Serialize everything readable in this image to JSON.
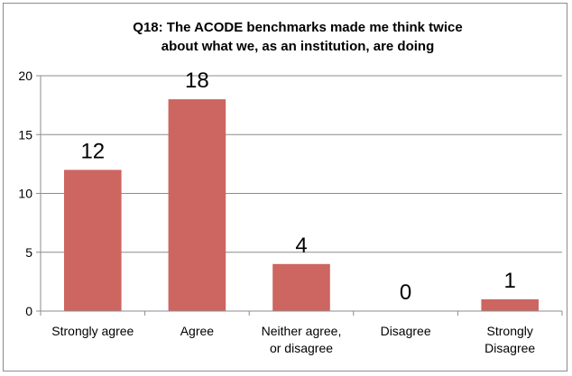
{
  "chart_data": {
    "type": "bar",
    "title_lines": [
      "Q18: The ACODE benchmarks made me think twice",
      "about what we, as an institution, are doing"
    ],
    "categories": [
      [
        "Strongly agree"
      ],
      [
        "Agree"
      ],
      [
        "Neither agree,",
        "or disagree"
      ],
      [
        "Disagree"
      ],
      [
        "Strongly",
        "Disagree"
      ]
    ],
    "values": [
      12,
      18,
      4,
      0,
      1
    ],
    "data_labels": [
      "12",
      "18",
      "4",
      "0",
      "1"
    ],
    "ylim": [
      0,
      20
    ],
    "yticks": [
      0,
      5,
      10,
      15,
      20
    ],
    "grid": true,
    "legend": "none",
    "bar_color": "#cd6560"
  }
}
